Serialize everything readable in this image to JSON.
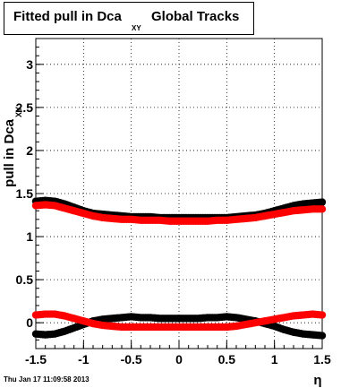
{
  "title": {
    "main": "Fitted pull in Dca",
    "subscript": "XY",
    "rest": "Global Tracks"
  },
  "timestamp": "Thu Jan 17 11:09:58 2013",
  "chart_data": {
    "type": "scatter",
    "title": "Fitted pull in Dca XY  Global Tracks",
    "xlabel": "η",
    "ylabel": "pull in Dca",
    "ylabel_subscript": "XY",
    "xlim": [
      -1.5,
      1.5
    ],
    "ylim": [
      -0.3,
      3.3
    ],
    "grid": true,
    "x_ticks": [
      -1.5,
      -1,
      -0.5,
      0,
      0.5,
      1,
      1.5
    ],
    "x_tick_labels": [
      "-1.5",
      "-1",
      "-0.5",
      "0",
      "0.5",
      "1",
      "1.5"
    ],
    "y_ticks": [
      0,
      0.5,
      1,
      1.5,
      2,
      2.5,
      3
    ],
    "y_tick_labels": [
      "0",
      "0.5",
      "1",
      "1.5",
      "2",
      "2.5",
      "3"
    ],
    "series": [
      {
        "color": "#000000",
        "x": [
          -1.5,
          -1.4,
          -1.3,
          -1.2,
          -1.1,
          -1.0,
          -0.9,
          -0.8,
          -0.7,
          -0.6,
          -0.5,
          -0.4,
          -0.3,
          -0.2,
          -0.1,
          0.0,
          0.1,
          0.2,
          0.3,
          0.4,
          0.5,
          0.6,
          0.7,
          0.8,
          0.9,
          1.0,
          1.1,
          1.2,
          1.3,
          1.4,
          1.5
        ],
        "y": [
          1.41,
          1.42,
          1.41,
          1.38,
          1.34,
          1.3,
          1.27,
          1.26,
          1.25,
          1.24,
          1.23,
          1.23,
          1.23,
          1.22,
          1.22,
          1.22,
          1.22,
          1.22,
          1.22,
          1.22,
          1.22,
          1.23,
          1.24,
          1.25,
          1.27,
          1.3,
          1.33,
          1.36,
          1.38,
          1.39,
          1.4
        ]
      },
      {
        "color": "#ff0000",
        "x": [
          -1.5,
          -1.4,
          -1.3,
          -1.2,
          -1.1,
          -1.0,
          -0.9,
          -0.8,
          -0.7,
          -0.6,
          -0.5,
          -0.4,
          -0.3,
          -0.2,
          -0.1,
          0.0,
          0.1,
          0.2,
          0.3,
          0.4,
          0.5,
          0.6,
          0.7,
          0.8,
          0.9,
          1.0,
          1.1,
          1.2,
          1.3,
          1.4,
          1.5
        ],
        "y": [
          1.36,
          1.37,
          1.36,
          1.33,
          1.3,
          1.27,
          1.24,
          1.22,
          1.21,
          1.2,
          1.2,
          1.19,
          1.19,
          1.19,
          1.18,
          1.18,
          1.18,
          1.18,
          1.18,
          1.19,
          1.19,
          1.2,
          1.21,
          1.22,
          1.24,
          1.26,
          1.28,
          1.3,
          1.31,
          1.32,
          1.32
        ]
      },
      {
        "color": "#000000",
        "x": [
          -1.5,
          -1.4,
          -1.3,
          -1.2,
          -1.1,
          -1.0,
          -0.9,
          -0.8,
          -0.7,
          -0.6,
          -0.5,
          -0.4,
          -0.3,
          -0.2,
          -0.1,
          0.0,
          0.1,
          0.2,
          0.3,
          0.4,
          0.5,
          0.6,
          0.7,
          0.8,
          0.9,
          1.0,
          1.1,
          1.2,
          1.3,
          1.4,
          1.5
        ],
        "y": [
          -0.13,
          -0.14,
          -0.13,
          -0.1,
          -0.06,
          -0.02,
          0.02,
          0.04,
          0.05,
          0.06,
          0.07,
          0.06,
          0.06,
          0.05,
          0.05,
          0.05,
          0.05,
          0.05,
          0.06,
          0.06,
          0.07,
          0.06,
          0.04,
          0.02,
          -0.01,
          -0.04,
          -0.08,
          -0.11,
          -0.13,
          -0.14,
          -0.15
        ]
      },
      {
        "color": "#ff0000",
        "x": [
          -1.5,
          -1.4,
          -1.3,
          -1.2,
          -1.1,
          -1.0,
          -0.9,
          -0.8,
          -0.7,
          -0.6,
          -0.5,
          -0.4,
          -0.3,
          -0.2,
          -0.1,
          0.0,
          0.1,
          0.2,
          0.3,
          0.4,
          0.5,
          0.6,
          0.7,
          0.8,
          0.9,
          1.0,
          1.1,
          1.2,
          1.3,
          1.4,
          1.5
        ],
        "y": [
          0.09,
          0.1,
          0.1,
          0.08,
          0.05,
          0.02,
          -0.01,
          -0.03,
          -0.04,
          -0.05,
          -0.05,
          -0.05,
          -0.05,
          -0.05,
          -0.05,
          -0.05,
          -0.05,
          -0.05,
          -0.05,
          -0.05,
          -0.05,
          -0.04,
          -0.02,
          0.0,
          0.02,
          0.04,
          0.06,
          0.08,
          0.09,
          0.1,
          0.09
        ]
      }
    ]
  }
}
